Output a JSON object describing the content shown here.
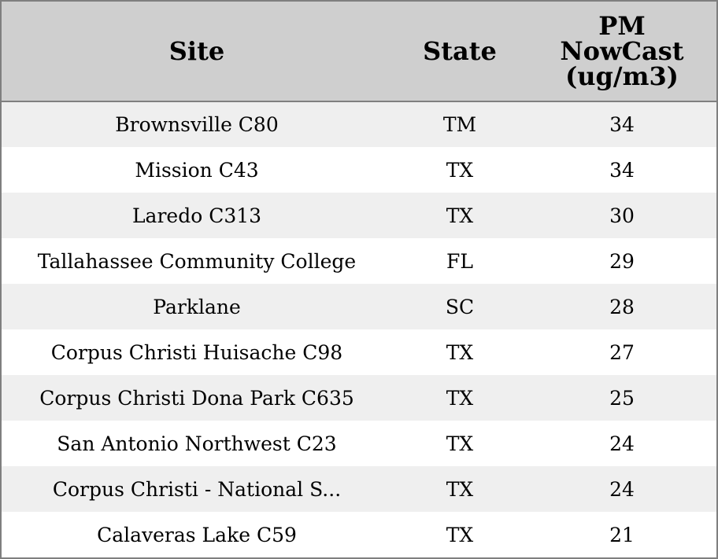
{
  "chart_data": {
    "type": "table",
    "columns": [
      "Site",
      "State",
      "PM NowCast (ug/m3)"
    ],
    "header_lines": [
      [
        "Site"
      ],
      [
        "State"
      ],
      [
        "PM",
        "NowCast",
        "(ug/m3)"
      ]
    ],
    "rows": [
      {
        "site": "Brownsville C80",
        "state": "TM",
        "pm": "34"
      },
      {
        "site": "Mission C43",
        "state": "TX",
        "pm": "34"
      },
      {
        "site": "Laredo C313",
        "state": "TX",
        "pm": "30"
      },
      {
        "site": "Tallahassee Community College",
        "state": "FL",
        "pm": "29"
      },
      {
        "site": "Parklane",
        "state": "SC",
        "pm": "28"
      },
      {
        "site": "Corpus Christi Huisache C98",
        "state": "TX",
        "pm": "27"
      },
      {
        "site": "Corpus Christi Dona Park C635",
        "state": "TX",
        "pm": "25"
      },
      {
        "site": "San Antonio Northwest C23",
        "state": "TX",
        "pm": "24"
      },
      {
        "site": "Corpus Christi - National S...",
        "state": "TX",
        "pm": "24"
      },
      {
        "site": "Calaveras Lake C59",
        "state": "TX",
        "pm": "21"
      }
    ],
    "colors": {
      "header_bg": "#cfcfcf",
      "row_alt_bg": "#efefef",
      "row_bg": "#ffffff",
      "border": "#7f7f7f"
    }
  }
}
